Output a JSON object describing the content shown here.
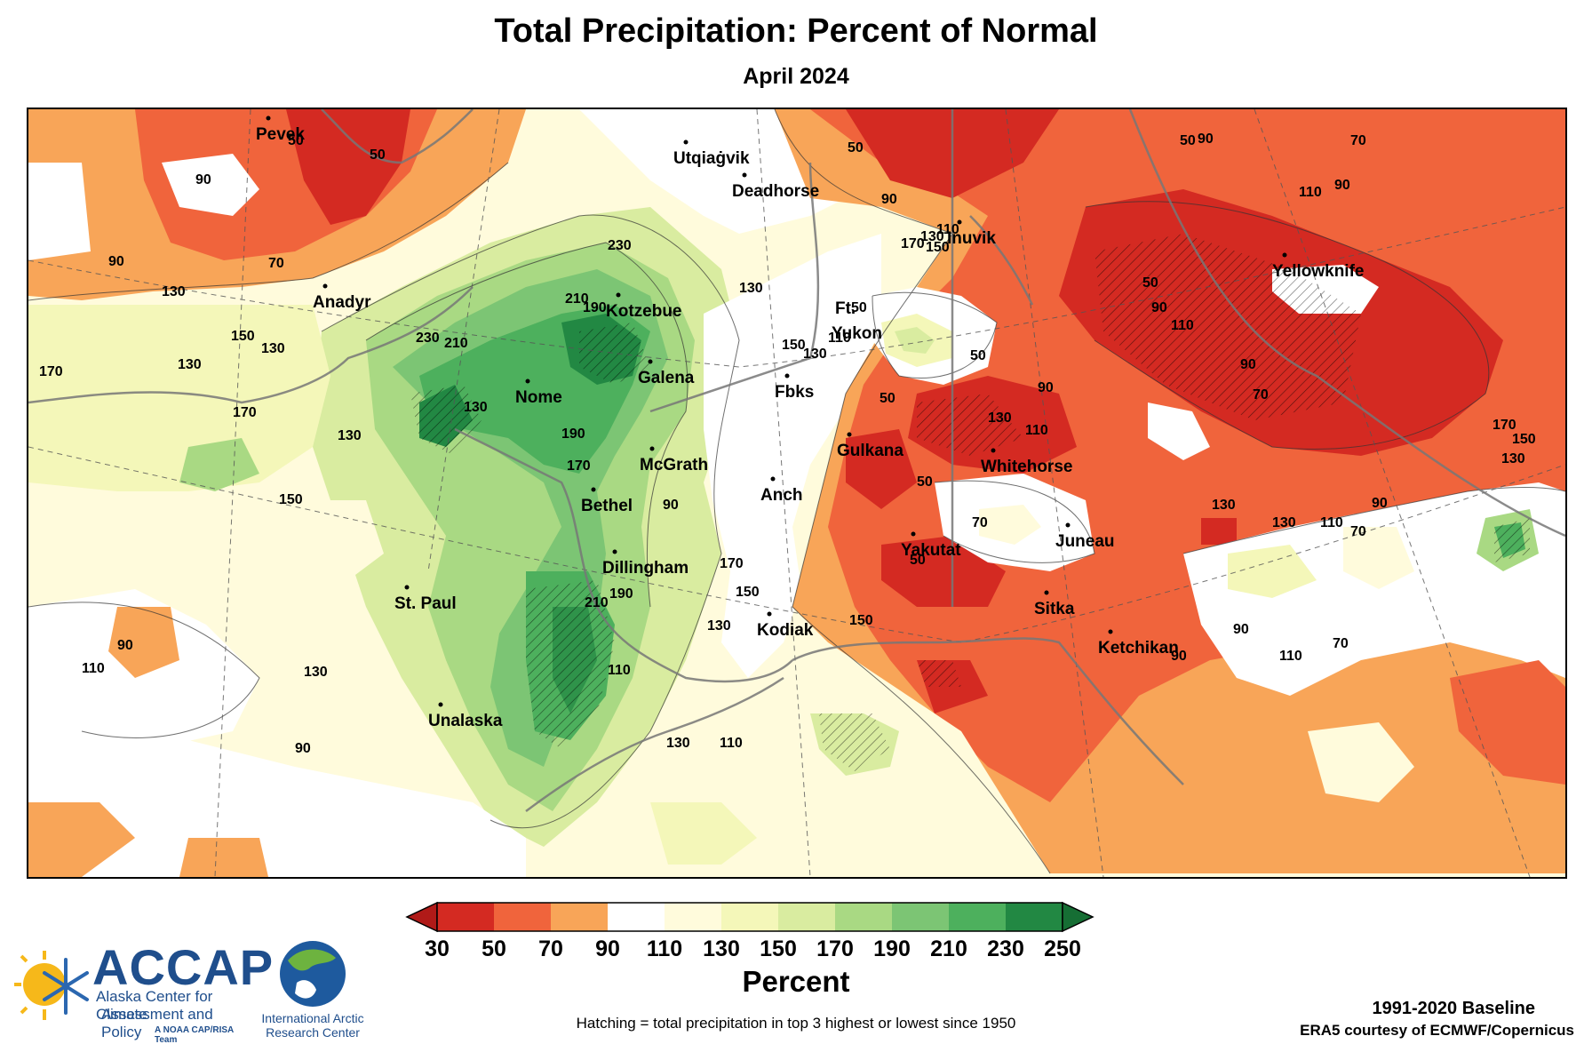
{
  "title": "Total Precipitation: Percent of Normal",
  "subtitle": "April 2024",
  "colorbar": {
    "title": "Percent",
    "ticks": [
      "30",
      "50",
      "70",
      "90",
      "110",
      "130",
      "150",
      "170",
      "190",
      "210",
      "230",
      "250"
    ],
    "colors": [
      "#d42a22",
      "#f0643c",
      "#f8a558",
      "#ffffff",
      "#fffbdc",
      "#f4f7b9",
      "#d9eca0",
      "#a9d983",
      "#7cc574",
      "#4db05d",
      "#228843"
    ],
    "low_arrow_color": "#b01a18",
    "high_arrow_color": "#166e34"
  },
  "note": "Hatching = total precipitation in top 3 highest or lowest since 1950",
  "baseline": "1991-2020 Baseline",
  "credit": "ERA5 courtesy of ECMWF/Copernicus",
  "logos": {
    "accap_name": "ACCAP",
    "accap_line1": "Alaska Center for Climate",
    "accap_line2": "Assessment and Policy",
    "accap_tag": "A NOAA CAP/RISA Team",
    "iarc_line1": "International Arctic",
    "iarc_line2": "Research Center"
  },
  "map": {
    "cities": [
      {
        "name": "Pevek",
        "value": "Pevek"
      },
      {
        "name": "Utqiagvik",
        "value": "Utqiaġvik"
      },
      {
        "name": "Deadhorse",
        "value": "Deadhorse"
      },
      {
        "name": "Inuvik",
        "value": "Inuvik"
      },
      {
        "name": "Yellowknife",
        "value": "Yellowknife"
      },
      {
        "name": "Anadyr",
        "value": "Anadyr"
      },
      {
        "name": "Kotzebue",
        "value": "Kotzebue"
      },
      {
        "name": "Ft",
        "value": "Ft."
      },
      {
        "name": "Yukon",
        "value": "Yukon"
      },
      {
        "name": "Galena",
        "value": "Galena"
      },
      {
        "name": "Fbks",
        "value": "Fbks"
      },
      {
        "name": "Nome",
        "value": "Nome"
      },
      {
        "name": "Gulkana",
        "value": "Gulkana"
      },
      {
        "name": "Whitehorse",
        "value": "Whitehorse"
      },
      {
        "name": "McGrath",
        "value": "McGrath"
      },
      {
        "name": "Bethel",
        "value": "Bethel"
      },
      {
        "name": "Anch",
        "value": "Anch"
      },
      {
        "name": "Juneau",
        "value": "Juneau"
      },
      {
        "name": "Yakutat",
        "value": "Yakutat"
      },
      {
        "name": "Dillingham",
        "value": "Dillingham"
      },
      {
        "name": "St Paul",
        "value": "St. Paul"
      },
      {
        "name": "Sitka",
        "value": "Sitka"
      },
      {
        "name": "Kodiak",
        "value": "Kodiak"
      },
      {
        "name": "Ketchikan",
        "value": "Ketchikan"
      },
      {
        "name": "Unalaska",
        "value": "Unalaska"
      }
    ],
    "contour_labels": [
      "50",
      "70",
      "90",
      "110",
      "130",
      "150",
      "170",
      "190",
      "210",
      "230"
    ]
  }
}
